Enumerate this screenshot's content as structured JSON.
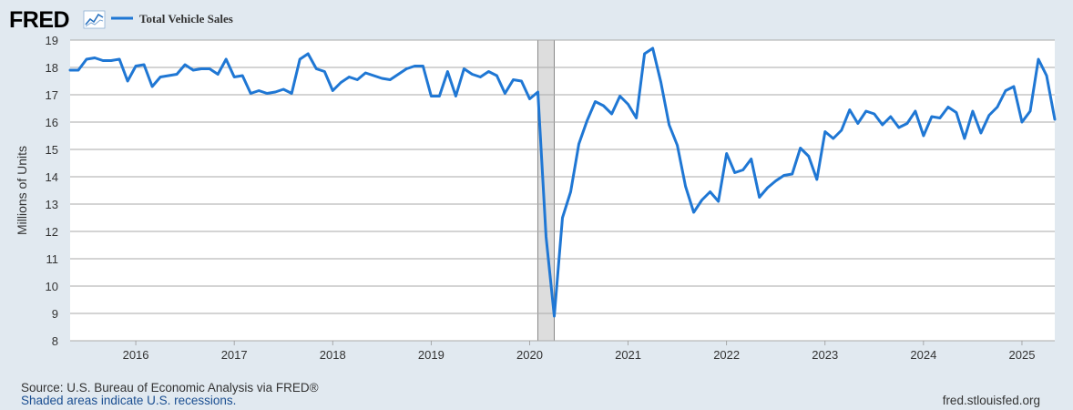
{
  "brand": {
    "logo_text": "FRED"
  },
  "legend": {
    "label": "Total Vehicle Sales",
    "color": "#1f77d4"
  },
  "footer": {
    "source": "Source: U.S. Bureau of Economic Analysis via FRED®",
    "recession_note": "Shaded areas indicate U.S. recessions.",
    "site": "fred.stlouisfed.org"
  },
  "chart_data": {
    "type": "line",
    "title": "",
    "xlabel": "",
    "ylabel": "Millions of Units",
    "ylim": [
      8,
      19
    ],
    "xlim": [
      "2015-05",
      "2025-05"
    ],
    "yticks": [
      8,
      9,
      10,
      11,
      12,
      13,
      14,
      15,
      16,
      17,
      18,
      19
    ],
    "xticks": [
      "2016",
      "2017",
      "2018",
      "2019",
      "2020",
      "2021",
      "2022",
      "2023",
      "2024",
      "2025"
    ],
    "grid": "horizontal",
    "recession": {
      "start": "2020-02",
      "end": "2020-04",
      "color": "#dddddd"
    },
    "series": [
      {
        "name": "Total Vehicle Sales",
        "x": [
          "2015-05",
          "2015-06",
          "2015-07",
          "2015-08",
          "2015-09",
          "2015-10",
          "2015-11",
          "2015-12",
          "2016-01",
          "2016-02",
          "2016-03",
          "2016-04",
          "2016-05",
          "2016-06",
          "2016-07",
          "2016-08",
          "2016-09",
          "2016-10",
          "2016-11",
          "2016-12",
          "2017-01",
          "2017-02",
          "2017-03",
          "2017-04",
          "2017-05",
          "2017-06",
          "2017-07",
          "2017-08",
          "2017-09",
          "2017-10",
          "2017-11",
          "2017-12",
          "2018-01",
          "2018-02",
          "2018-03",
          "2018-04",
          "2018-05",
          "2018-06",
          "2018-07",
          "2018-08",
          "2018-09",
          "2018-10",
          "2018-11",
          "2018-12",
          "2019-01",
          "2019-02",
          "2019-03",
          "2019-04",
          "2019-05",
          "2019-06",
          "2019-07",
          "2019-08",
          "2019-09",
          "2019-10",
          "2019-11",
          "2019-12",
          "2020-01",
          "2020-02",
          "2020-03",
          "2020-04",
          "2020-05",
          "2020-06",
          "2020-07",
          "2020-08",
          "2020-09",
          "2020-10",
          "2020-11",
          "2020-12",
          "2021-01",
          "2021-02",
          "2021-03",
          "2021-04",
          "2021-05",
          "2021-06",
          "2021-07",
          "2021-08",
          "2021-09",
          "2021-10",
          "2021-11",
          "2021-12",
          "2022-01",
          "2022-02",
          "2022-03",
          "2022-04",
          "2022-05",
          "2022-06",
          "2022-07",
          "2022-08",
          "2022-09",
          "2022-10",
          "2022-11",
          "2022-12",
          "2023-01",
          "2023-02",
          "2023-03",
          "2023-04",
          "2023-05",
          "2023-06",
          "2023-07",
          "2023-08",
          "2023-09",
          "2023-10",
          "2023-11",
          "2023-12",
          "2024-01",
          "2024-02",
          "2024-03",
          "2024-04",
          "2024-05",
          "2024-06",
          "2024-07",
          "2024-08",
          "2024-09",
          "2024-10",
          "2024-11",
          "2024-12",
          "2025-01",
          "2025-02",
          "2025-03",
          "2025-04",
          "2025-05"
        ],
        "values": [
          17.9,
          17.9,
          18.3,
          18.35,
          18.25,
          18.25,
          18.3,
          17.5,
          18.05,
          18.1,
          17.3,
          17.65,
          17.7,
          17.75,
          18.1,
          17.9,
          17.95,
          17.95,
          17.75,
          18.3,
          17.65,
          17.7,
          17.05,
          17.15,
          17.05,
          17.1,
          17.2,
          17.05,
          18.3,
          18.5,
          17.95,
          17.85,
          17.15,
          17.45,
          17.65,
          17.55,
          17.8,
          17.7,
          17.6,
          17.55,
          17.75,
          17.95,
          18.05,
          18.05,
          16.95,
          16.95,
          17.85,
          16.95,
          17.95,
          17.75,
          17.65,
          17.85,
          17.7,
          17.05,
          17.55,
          17.5,
          16.85,
          17.1,
          11.8,
          8.9,
          12.5,
          13.45,
          15.2,
          16.05,
          16.75,
          16.6,
          16.3,
          16.95,
          16.65,
          16.15,
          18.5,
          18.7,
          17.45,
          15.9,
          15.15,
          13.65,
          12.7,
          13.15,
          13.45,
          13.1,
          14.85,
          14.15,
          14.25,
          14.65,
          13.25,
          13.6,
          13.85,
          14.05,
          14.1,
          15.05,
          14.75,
          13.9,
          15.65,
          15.4,
          15.7,
          16.45,
          15.95,
          16.4,
          16.3,
          15.9,
          16.2,
          15.8,
          15.95,
          16.4,
          15.5,
          16.2,
          16.15,
          16.55,
          16.35,
          15.4,
          16.4,
          15.6,
          16.25,
          16.55,
          17.15,
          17.3,
          16.0,
          16.4,
          18.3,
          17.7,
          16.1
        ]
      }
    ]
  }
}
